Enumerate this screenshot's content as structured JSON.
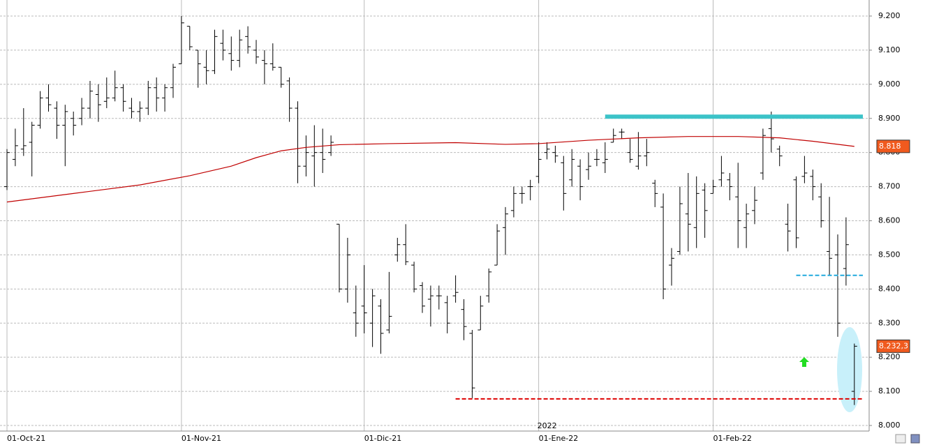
{
  "chart_data": {
    "type": "ohlc",
    "open": [
      8700,
      8780,
      8810,
      8830,
      8880,
      8960,
      8930,
      8880,
      8900,
      8900,
      8930,
      8970,
      8950,
      8960,
      8990,
      8930,
      8920,
      8930,
      8990,
      8960,
      8990,
      9060,
      9170,
      9100,
      9050,
      9040,
      9120,
      9090,
      9070,
      9140,
      9100,
      9070,
      9060,
      9050,
      9010,
      8930,
      8760,
      8790,
      8800,
      8800,
      8590,
      8400,
      8330,
      8350,
      8300,
      8350,
      8280,
      8500,
      8530,
      8470,
      8410,
      8370,
      8380,
      8360,
      8380,
      8340,
      8270,
      8280,
      8380,
      8470,
      8580,
      8630,
      8680,
      8700,
      8730,
      8800,
      8800,
      8770,
      8720,
      8760,
      8750,
      8780,
      8770,
      8830,
      8860,
      8800,
      8760,
      8790,
      8710,
      8640,
      8470,
      8510,
      8620,
      8580,
      8690,
      8680,
      8720,
      8720,
      8670,
      8580,
      8630,
      8740,
      8870,
      8810,
      8590,
      8720,
      8730,
      8730,
      8670,
      8510,
      8500,
      8460,
      8100
    ],
    "high": [
      8810,
      8870,
      8930,
      8890,
      8980,
      9000,
      8950,
      8940,
      8920,
      8960,
      9010,
      9000,
      9020,
      9040,
      9000,
      8960,
      8950,
      9010,
      9020,
      9000,
      9060,
      9200,
      9170,
      9100,
      9100,
      9160,
      9160,
      9140,
      9160,
      9170,
      9130,
      9100,
      9120,
      9050,
      9020,
      8950,
      8850,
      8880,
      8870,
      8850,
      8590,
      8550,
      8410,
      8470,
      8400,
      8370,
      8450,
      8550,
      8590,
      8480,
      8420,
      8410,
      8410,
      8380,
      8440,
      8370,
      8280,
      8380,
      8460,
      8590,
      8640,
      8700,
      8700,
      8720,
      8830,
      8830,
      8820,
      8790,
      8810,
      8780,
      8800,
      8810,
      8830,
      8870,
      8870,
      8840,
      8860,
      8840,
      8720,
      8680,
      8520,
      8700,
      8740,
      8730,
      8710,
      8720,
      8790,
      8740,
      8770,
      8650,
      8700,
      8870,
      8920,
      8820,
      8650,
      8730,
      8790,
      8750,
      8710,
      8670,
      8560,
      8610,
      8240
    ],
    "low": [
      8690,
      8760,
      8790,
      8730,
      8870,
      8920,
      8840,
      8760,
      8850,
      8880,
      8900,
      8890,
      8930,
      8950,
      8920,
      8900,
      8890,
      8910,
      8920,
      8920,
      8960,
      9060,
      9100,
      8990,
      9000,
      9030,
      9070,
      9040,
      9050,
      9090,
      9060,
      9000,
      9040,
      8990,
      8890,
      8710,
      8730,
      8700,
      8740,
      8790,
      8390,
      8360,
      8260,
      8270,
      8230,
      8210,
      8270,
      8480,
      8470,
      8390,
      8330,
      8290,
      8340,
      8270,
      8360,
      8250,
      8080,
      8280,
      8360,
      8470,
      8500,
      8610,
      8650,
      8660,
      8710,
      8780,
      8770,
      8630,
      8700,
      8660,
      8720,
      8760,
      8740,
      8830,
      8840,
      8770,
      8750,
      8760,
      8640,
      8370,
      8410,
      8500,
      8510,
      8520,
      8550,
      8680,
      8700,
      8660,
      8520,
      8520,
      8590,
      8720,
      8800,
      8760,
      8510,
      8520,
      8710,
      8660,
      8580,
      8440,
      8260,
      8410,
      8060
    ],
    "close": [
      8800,
      8820,
      8820,
      8880,
      8960,
      8940,
      8880,
      8920,
      8880,
      8930,
      8980,
      8940,
      8960,
      8990,
      8950,
      8920,
      8930,
      8990,
      8960,
      8990,
      9050,
      9180,
      9110,
      9060,
      9040,
      9140,
      9100,
      9070,
      9130,
      9110,
      9080,
      9060,
      9050,
      9000,
      8930,
      8760,
      8800,
      8800,
      8780,
      8830,
      8400,
      8500,
      8300,
      8330,
      8380,
      8270,
      8320,
      8530,
      8480,
      8400,
      8350,
      8380,
      8380,
      8300,
      8390,
      8290,
      8110,
      8350,
      8450,
      8570,
      8620,
      8680,
      8680,
      8700,
      8780,
      8810,
      8790,
      8680,
      8780,
      8700,
      8760,
      8780,
      8780,
      8850,
      8860,
      8780,
      8790,
      8800,
      8680,
      8400,
      8490,
      8650,
      8590,
      8680,
      8630,
      8700,
      8740,
      8700,
      8600,
      8620,
      8660,
      8850,
      8840,
      8790,
      8570,
      8550,
      8740,
      8700,
      8600,
      8490,
      8300,
      8530,
      8232.3
    ],
    "bar_color": "#000000",
    "moving_average": {
      "color": "#c00000",
      "x": [
        0,
        8,
        16,
        22,
        27,
        30,
        33,
        36,
        40,
        46,
        54,
        60,
        64,
        70,
        76,
        82,
        88,
        93,
        97,
        102
      ],
      "values": [
        8655,
        8680,
        8705,
        8732,
        8760,
        8785,
        8805,
        8815,
        8823,
        8826,
        8829,
        8824,
        8826,
        8836,
        8843,
        8847,
        8847,
        8843,
        8833,
        8818
      ]
    },
    "ma_last": {
      "value": 8818,
      "label": "8.818"
    },
    "last_price": {
      "value": 8232.3,
      "label": "8.232,3"
    },
    "levels": [
      {
        "value": 8905,
        "from": 72,
        "color": "#3cc3c8",
        "style": "solid"
      },
      {
        "value": 8440,
        "from": 95,
        "color": "#22aadd",
        "style": "dashed"
      },
      {
        "value": 8078,
        "from": 54,
        "color": "#dd0000",
        "style": "dashed"
      }
    ],
    "ylim": [
      8000,
      9200
    ],
    "yticks": [
      {
        "value": 8000,
        "label": "8.000"
      },
      {
        "value": 8100,
        "label": "8.100"
      },
      {
        "value": 8200,
        "label": "8.200"
      },
      {
        "value": 8300,
        "label": "8.300"
      },
      {
        "value": 8400,
        "label": "8.400"
      },
      {
        "value": 8500,
        "label": "8.500"
      },
      {
        "value": 8600,
        "label": "8.600"
      },
      {
        "value": 8700,
        "label": "8.700"
      },
      {
        "value": 8800,
        "label": "8.800"
      },
      {
        "value": 8900,
        "label": "8.900"
      },
      {
        "value": 9000,
        "label": "9.000"
      },
      {
        "value": 9100,
        "label": "9.100"
      },
      {
        "value": 9200,
        "label": "9.200"
      }
    ],
    "xticks": [
      {
        "value": 0,
        "label": "01-Oct-21"
      },
      {
        "value": 21,
        "label": "01-Nov-21"
      },
      {
        "value": 43,
        "label": "01-Dic-21"
      },
      {
        "value": 64,
        "label": "01-Ene-22"
      },
      {
        "value": 85,
        "label": "01-Feb-22"
      }
    ],
    "year_label": {
      "value": 64,
      "label": "2022"
    },
    "grid": true
  }
}
